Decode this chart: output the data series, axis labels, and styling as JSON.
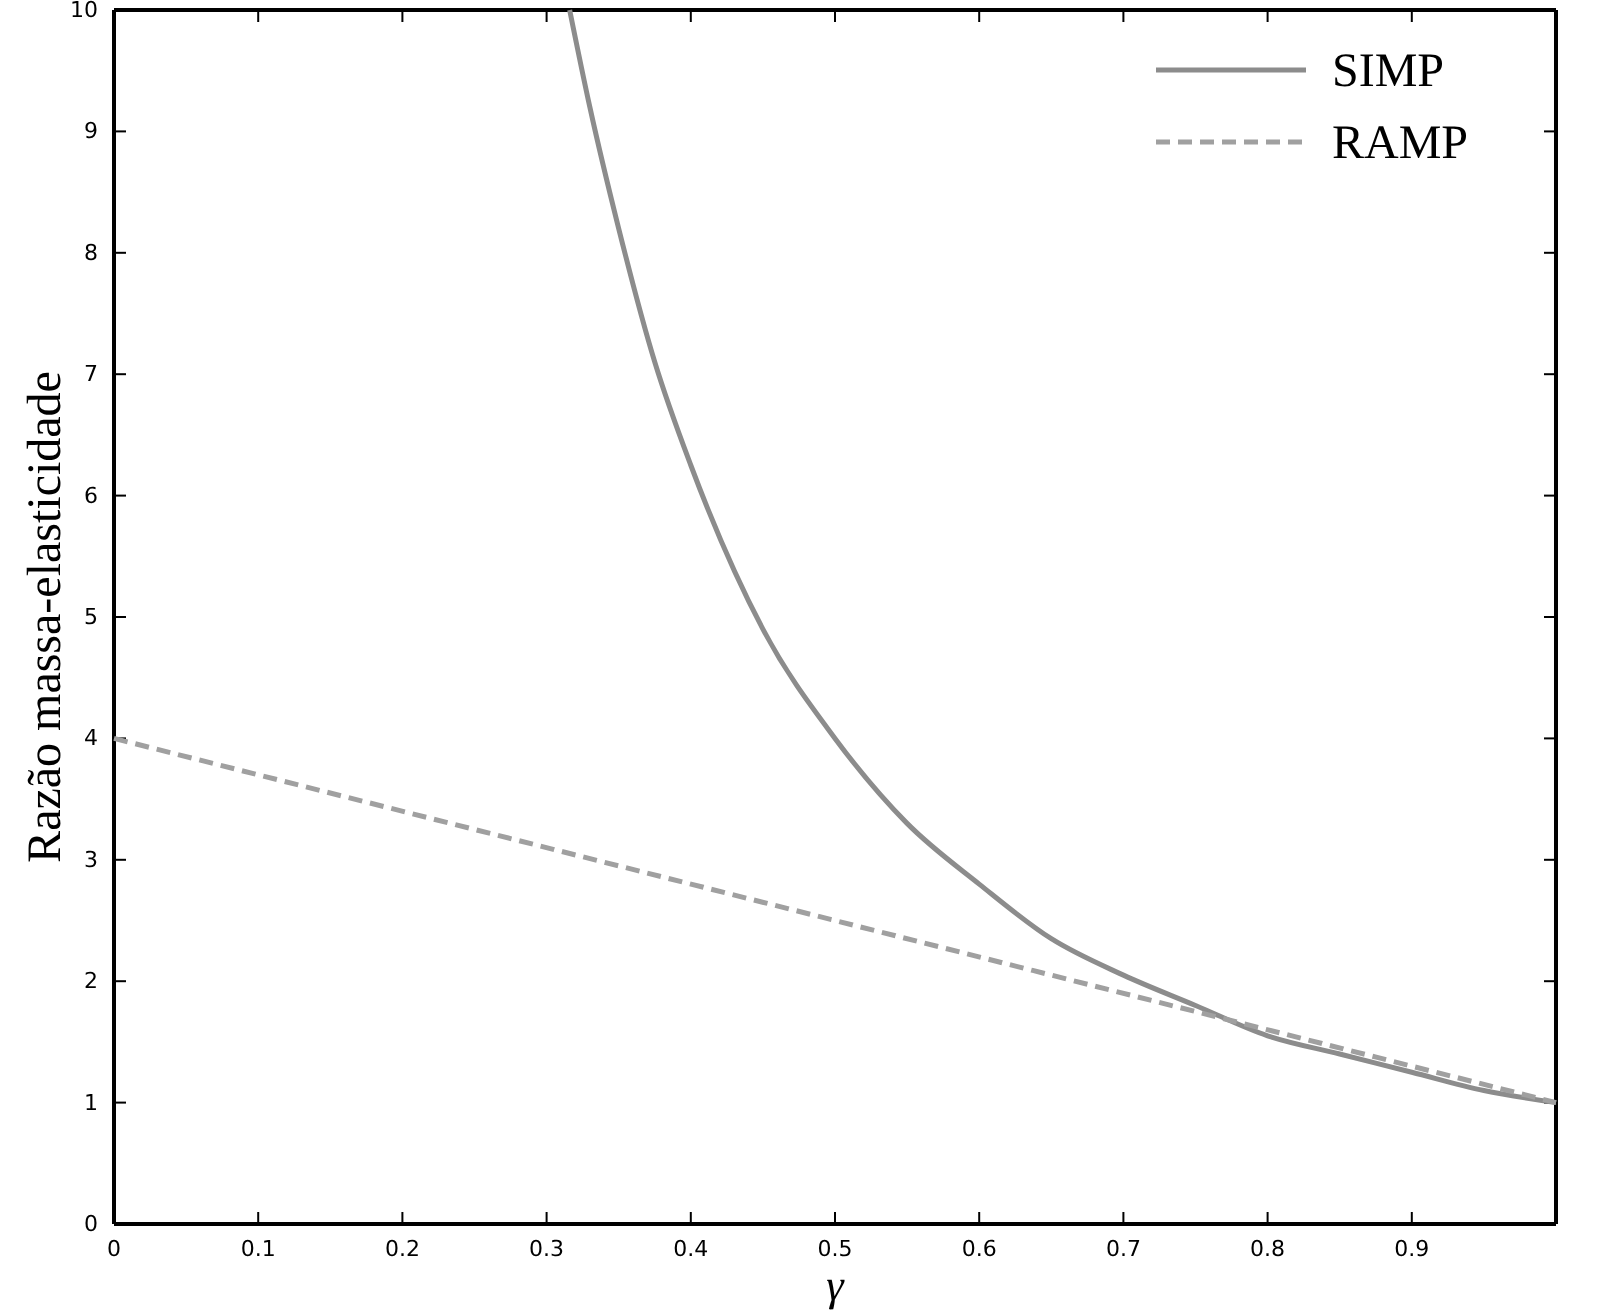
{
  "chart_data": {
    "type": "line",
    "xlabel": "γ",
    "ylabel": "Razão massa-elasticidade",
    "xlim": [
      0,
      1
    ],
    "ylim": [
      0,
      10
    ],
    "xticks": [
      0,
      0.1,
      0.2,
      0.3,
      0.4,
      0.5,
      0.6,
      0.7,
      0.8,
      0.9
    ],
    "yticks": [
      0,
      1,
      2,
      3,
      4,
      5,
      6,
      7,
      8,
      9,
      10
    ],
    "legend": "top right",
    "grid": false,
    "series": [
      {
        "name": "SIMP",
        "color": "#8c8c8c",
        "line_style": "solid",
        "x": [
          0.316,
          0.33,
          0.35,
          0.375,
          0.4,
          0.45,
          0.5,
          0.55,
          0.6,
          0.65,
          0.7,
          0.75,
          0.8,
          0.85,
          0.9,
          0.95,
          1
        ],
        "values": [
          10,
          9.2,
          8.2,
          7.1,
          6.25,
          4.9,
          4,
          3.3,
          2.8,
          2.35,
          2.05,
          1.8,
          1.55,
          1.4,
          1.25,
          1.1,
          1
        ]
      },
      {
        "name": "RAMP",
        "color": "#a0a0a0",
        "line_style": "dashed",
        "x": [
          0,
          0.25,
          0.5,
          0.75,
          1
        ],
        "values": [
          4,
          3.25,
          2.5,
          1.75,
          1
        ]
      }
    ]
  }
}
